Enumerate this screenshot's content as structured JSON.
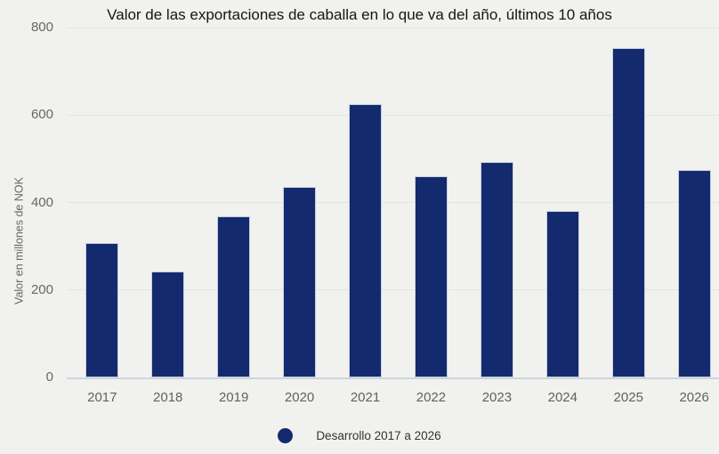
{
  "chart_data": {
    "type": "bar",
    "title": "Valor de las exportaciones de caballa en lo que va del año, últimos 10 años",
    "categories": [
      "2017",
      "2018",
      "2019",
      "2020",
      "2021",
      "2022",
      "2023",
      "2024",
      "2025",
      "2026"
    ],
    "values": [
      307,
      242,
      368,
      436,
      625,
      460,
      492,
      380,
      754,
      475
    ],
    "xlabel": "",
    "ylabel": "Valor en millones de NOK",
    "ylim": [
      0,
      800
    ],
    "yticks": [
      0,
      200,
      400,
      600,
      800
    ],
    "grid": true,
    "legend_label": "Desarrollo 2017 a 2026",
    "legend_position": "bottom",
    "bar_color": "#142a6e"
  },
  "colors": {
    "bar": "#142a6e",
    "background": "#f1f2ef",
    "gridline": "#e3e5e1",
    "baseline": "#ccd5de",
    "title_text": "#151515",
    "axis_text": "#666666",
    "legend_text": "#333333"
  }
}
